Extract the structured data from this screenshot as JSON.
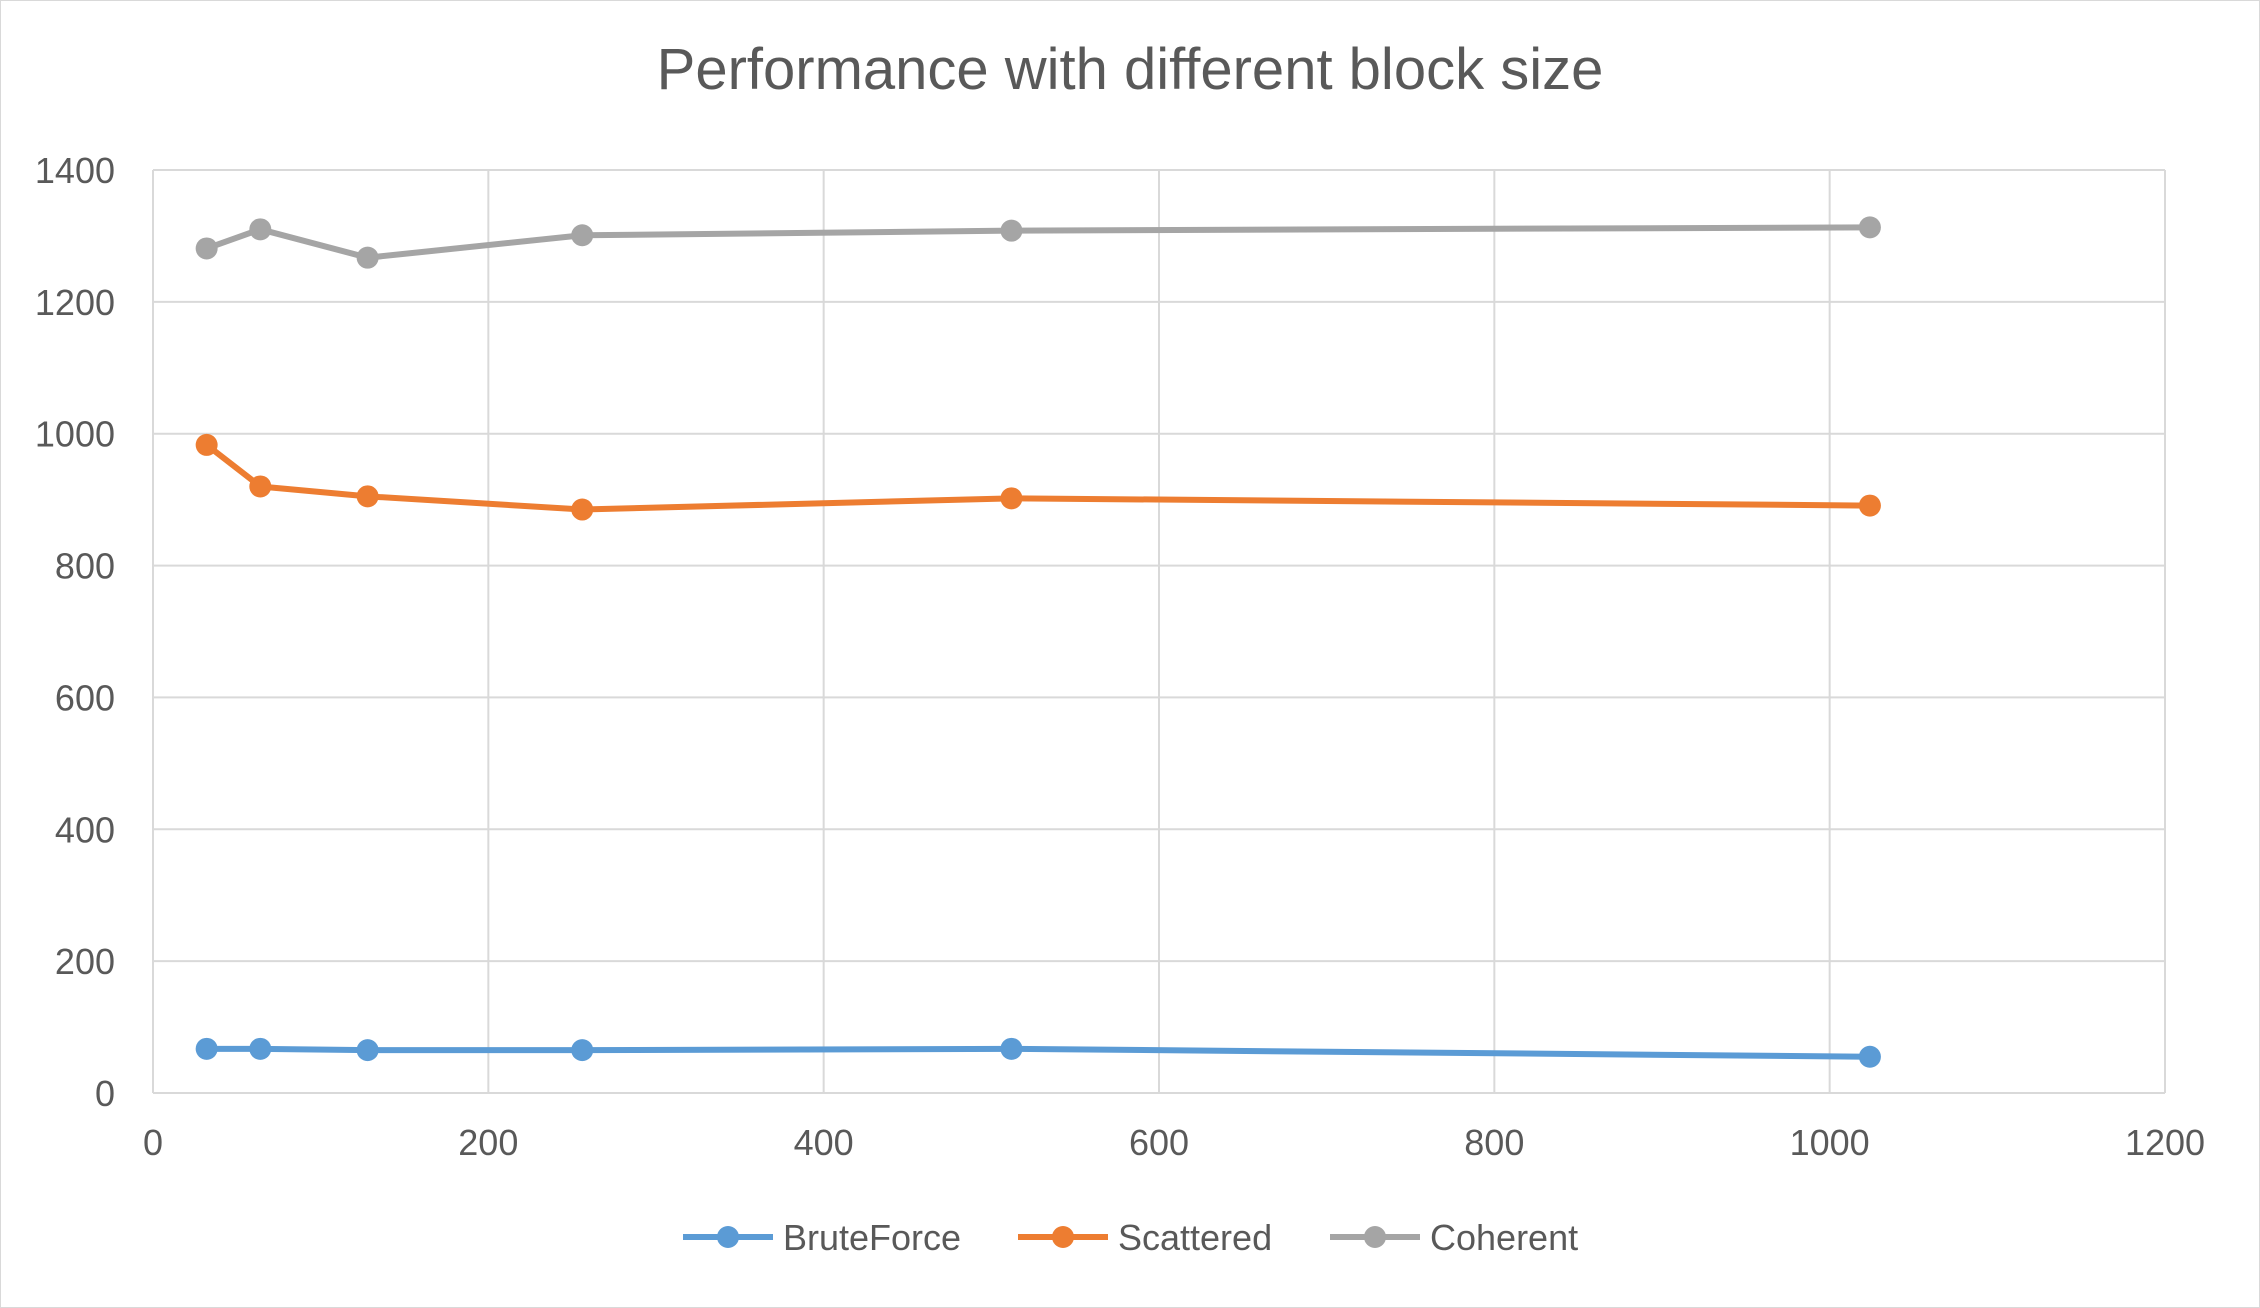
{
  "chart_data": {
    "type": "line",
    "title": "Performance with different block size",
    "xlim": [
      0,
      1200
    ],
    "ylim": [
      0,
      1400
    ],
    "xticks": [
      0,
      200,
      400,
      600,
      800,
      1000,
      1200
    ],
    "yticks": [
      0,
      200,
      400,
      600,
      800,
      1000,
      1200,
      1400
    ],
    "grid": true,
    "legend_position": "bottom",
    "series": [
      {
        "name": "BruteForce",
        "color": "#5B9BD5",
        "x": [
          32,
          64,
          128,
          256,
          512,
          1024
        ],
        "y": [
          67,
          67,
          65,
          65,
          67,
          55
        ]
      },
      {
        "name": "Scattered",
        "color": "#ED7D31",
        "x": [
          32,
          64,
          128,
          256,
          512,
          1024
        ],
        "y": [
          983,
          920,
          905,
          885,
          902,
          891
        ]
      },
      {
        "name": "Coherent",
        "color": "#A5A5A5",
        "x": [
          32,
          64,
          128,
          256,
          512,
          1024
        ],
        "y": [
          1281,
          1310,
          1267,
          1301,
          1308,
          1313
        ]
      }
    ]
  }
}
